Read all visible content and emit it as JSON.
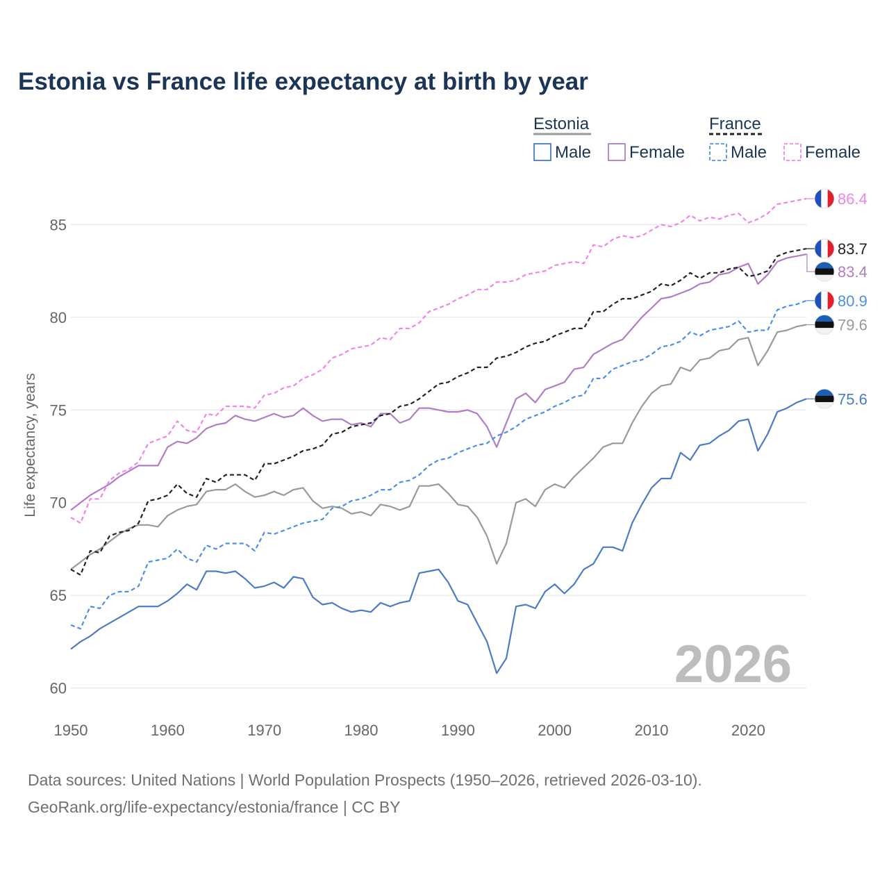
{
  "chart_data": {
    "type": "line",
    "title": "Estonia vs France life expectancy at birth by year",
    "ylabel": "Life expectancy, years",
    "xlabel": "",
    "xlim": [
      1950,
      2026
    ],
    "ylim": [
      59.5,
      87
    ],
    "x_ticks": [
      "1950",
      "1960",
      "1970",
      "1980",
      "1990",
      "2000",
      "2010",
      "2020"
    ],
    "y_ticks": [
      "60",
      "65",
      "70",
      "75",
      "80",
      "85"
    ],
    "year_watermark": "2026",
    "legend": {
      "groups": [
        {
          "name": "Estonia",
          "style": "solid",
          "color": "#999999",
          "items": [
            "Male",
            "Female"
          ]
        },
        {
          "name": "France",
          "style": "dashed",
          "color": "#222222",
          "items": [
            "Male",
            "Female"
          ]
        }
      ]
    },
    "x": [
      1950,
      1951,
      1952,
      1953,
      1954,
      1955,
      1956,
      1957,
      1958,
      1959,
      1960,
      1961,
      1962,
      1963,
      1964,
      1965,
      1966,
      1967,
      1968,
      1969,
      1970,
      1971,
      1972,
      1973,
      1974,
      1975,
      1976,
      1977,
      1978,
      1979,
      1980,
      1981,
      1982,
      1983,
      1984,
      1985,
      1986,
      1987,
      1988,
      1989,
      1990,
      1991,
      1992,
      1993,
      1994,
      1995,
      1996,
      1997,
      1998,
      1999,
      2000,
      2001,
      2002,
      2003,
      2004,
      2005,
      2006,
      2007,
      2008,
      2009,
      2010,
      2011,
      2012,
      2013,
      2014,
      2015,
      2016,
      2017,
      2018,
      2019,
      2020,
      2021,
      2022,
      2023,
      2024,
      2025,
      2026
    ],
    "series": [
      {
        "name": "Estonia Female",
        "country": "Estonia",
        "sex": "Female",
        "dashed": false,
        "color": "#b07cc6",
        "end_label": "83.4",
        "values": [
          69.6,
          70.0,
          70.4,
          70.7,
          71.0,
          71.4,
          71.7,
          72.0,
          72.0,
          72.0,
          73.0,
          73.3,
          73.2,
          73.5,
          74.0,
          74.2,
          74.3,
          74.7,
          74.5,
          74.4,
          74.6,
          74.8,
          74.6,
          74.7,
          75.1,
          74.7,
          74.4,
          74.5,
          74.5,
          74.2,
          74.3,
          74.1,
          74.8,
          74.8,
          74.3,
          74.5,
          75.1,
          75.1,
          75.0,
          74.9,
          74.9,
          75.0,
          74.8,
          74.1,
          73.0,
          74.3,
          75.6,
          75.9,
          75.4,
          76.1,
          76.3,
          76.5,
          77.2,
          77.3,
          78.0,
          78.3,
          78.6,
          78.8,
          79.4,
          80.0,
          80.5,
          81.0,
          81.1,
          81.3,
          81.5,
          81.8,
          81.9,
          82.3,
          82.4,
          82.7,
          82.9,
          81.8,
          82.3,
          83.0,
          83.2,
          83.3,
          83.4
        ]
      },
      {
        "name": "Estonia Both",
        "country": "Estonia",
        "sex": "Total",
        "dashed": false,
        "color": "#999999",
        "end_label": "79.6",
        "values": [
          66.4,
          66.8,
          67.2,
          67.5,
          67.9,
          68.3,
          68.6,
          68.8,
          68.8,
          68.7,
          69.3,
          69.6,
          69.8,
          69.9,
          70.6,
          70.7,
          70.7,
          71.0,
          70.6,
          70.3,
          70.4,
          70.6,
          70.4,
          70.7,
          70.8,
          70.1,
          69.7,
          69.8,
          69.7,
          69.4,
          69.5,
          69.3,
          69.9,
          69.8,
          69.6,
          69.8,
          70.9,
          70.9,
          71.0,
          70.5,
          69.9,
          69.8,
          69.2,
          68.2,
          66.7,
          67.8,
          70.0,
          70.2,
          69.8,
          70.7,
          71.0,
          70.8,
          71.4,
          71.9,
          72.4,
          73.0,
          73.2,
          73.2,
          74.3,
          75.2,
          75.9,
          76.3,
          76.4,
          77.3,
          77.1,
          77.7,
          77.8,
          78.2,
          78.3,
          78.8,
          78.9,
          77.4,
          78.2,
          79.2,
          79.3,
          79.5,
          79.6
        ]
      },
      {
        "name": "Estonia Male",
        "country": "Estonia",
        "sex": "Male",
        "dashed": false,
        "color": "#4a7bc4",
        "end_label": "75.6",
        "values": [
          62.1,
          62.5,
          62.8,
          63.2,
          63.5,
          63.8,
          64.1,
          64.4,
          64.4,
          64.4,
          64.7,
          65.1,
          65.6,
          65.3,
          66.3,
          66.3,
          66.2,
          66.3,
          65.9,
          65.4,
          65.5,
          65.7,
          65.4,
          66.0,
          65.9,
          64.9,
          64.5,
          64.6,
          64.3,
          64.1,
          64.2,
          64.1,
          64.6,
          64.4,
          64.6,
          64.7,
          66.2,
          66.3,
          66.4,
          65.7,
          64.7,
          64.5,
          63.5,
          62.5,
          60.8,
          61.6,
          64.4,
          64.5,
          64.3,
          65.2,
          65.6,
          65.1,
          65.6,
          66.4,
          66.7,
          67.6,
          67.6,
          67.4,
          68.9,
          69.9,
          70.8,
          71.3,
          71.3,
          72.7,
          72.3,
          73.1,
          73.2,
          73.6,
          73.9,
          74.4,
          74.5,
          72.8,
          73.7,
          74.9,
          75.1,
          75.4,
          75.6
        ]
      },
      {
        "name": "France Female",
        "country": "France",
        "sex": "Female",
        "dashed": true,
        "color": "#f283e8",
        "end_label": "86.4",
        "values": [
          69.2,
          68.9,
          70.2,
          70.2,
          71.2,
          71.6,
          71.8,
          72.2,
          73.2,
          73.4,
          73.6,
          74.4,
          73.9,
          73.8,
          74.8,
          74.7,
          75.2,
          75.2,
          75.2,
          75.1,
          75.8,
          75.9,
          76.2,
          76.3,
          76.7,
          76.9,
          77.2,
          77.8,
          78.0,
          78.3,
          78.4,
          78.5,
          78.9,
          78.8,
          79.4,
          79.4,
          79.7,
          80.3,
          80.5,
          80.7,
          81.0,
          81.2,
          81.5,
          81.5,
          81.9,
          81.9,
          82.0,
          82.3,
          82.4,
          82.5,
          82.8,
          82.9,
          83.0,
          82.9,
          83.9,
          83.8,
          84.2,
          84.4,
          84.3,
          84.4,
          84.7,
          85.0,
          84.9,
          85.1,
          85.5,
          85.2,
          85.4,
          85.3,
          85.5,
          85.6,
          85.1,
          85.3,
          85.6,
          86.1,
          86.2,
          86.3,
          86.4
        ]
      },
      {
        "name": "France Both",
        "country": "France",
        "sex": "Total",
        "dashed": true,
        "color": "#222222",
        "end_label": "83.7",
        "values": [
          66.4,
          66.1,
          67.4,
          67.3,
          68.2,
          68.4,
          68.5,
          68.9,
          70.1,
          70.2,
          70.4,
          71.0,
          70.5,
          70.3,
          71.3,
          71.1,
          71.5,
          71.5,
          71.5,
          71.2,
          72.1,
          72.1,
          72.3,
          72.5,
          72.8,
          72.9,
          73.1,
          73.7,
          73.8,
          74.1,
          74.2,
          74.3,
          74.7,
          74.8,
          75.2,
          75.3,
          75.6,
          76.0,
          76.4,
          76.5,
          76.8,
          77.0,
          77.3,
          77.3,
          77.8,
          77.9,
          78.1,
          78.4,
          78.6,
          78.7,
          79.0,
          79.2,
          79.4,
          79.4,
          80.3,
          80.3,
          80.7,
          81.0,
          81.0,
          81.2,
          81.4,
          81.8,
          81.7,
          82.0,
          82.4,
          82.1,
          82.4,
          82.4,
          82.6,
          82.7,
          82.2,
          82.3,
          82.5,
          83.3,
          83.5,
          83.6,
          83.7
        ]
      },
      {
        "name": "France Male",
        "country": "France",
        "sex": "Male",
        "dashed": true,
        "color": "#4c8fe8",
        "end_label": "80.9",
        "values": [
          63.4,
          63.2,
          64.4,
          64.3,
          65.0,
          65.2,
          65.2,
          65.5,
          66.8,
          66.9,
          67.0,
          67.5,
          67.0,
          66.8,
          67.7,
          67.5,
          67.8,
          67.8,
          67.8,
          67.4,
          68.4,
          68.3,
          68.5,
          68.7,
          68.9,
          69.0,
          69.1,
          69.7,
          69.8,
          70.1,
          70.2,
          70.4,
          70.7,
          70.7,
          71.1,
          71.2,
          71.5,
          72.0,
          72.3,
          72.4,
          72.7,
          72.9,
          73.1,
          73.2,
          73.6,
          73.8,
          74.1,
          74.5,
          74.7,
          74.9,
          75.2,
          75.4,
          75.7,
          75.8,
          76.7,
          76.7,
          77.2,
          77.4,
          77.6,
          77.7,
          78.0,
          78.4,
          78.5,
          78.7,
          79.2,
          79.0,
          79.3,
          79.4,
          79.5,
          79.8,
          79.2,
          79.3,
          79.3,
          80.4,
          80.6,
          80.7,
          80.9
        ]
      }
    ]
  },
  "source_line1": "Data sources: United Nations | World Population Prospects (1950–2026, retrieved 2026-03-10).",
  "source_line2": "GeoRank.org/life-expectancy/estonia/france | CC BY"
}
